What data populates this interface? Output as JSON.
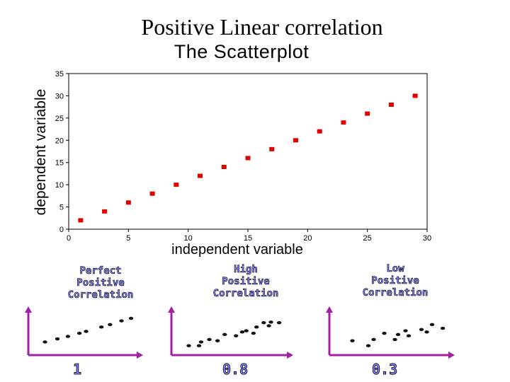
{
  "slide": {
    "title": "Positive Linear correlation"
  },
  "chart_data": [
    {
      "type": "scatter",
      "title": "The Scatterplot",
      "xlabel": "independent variable",
      "ylabel": "dependent variable",
      "xlim": [
        0,
        30
      ],
      "ylim": [
        0,
        35
      ],
      "xticks": [
        "0",
        "5",
        "10",
        "15",
        "20",
        "25",
        "30"
      ],
      "yticks": [
        "0",
        "5",
        "10",
        "15",
        "20",
        "25",
        "30",
        "35"
      ],
      "grid": false,
      "marker_color": "#e00000",
      "x": [
        1,
        3,
        5,
        7,
        9,
        11,
        13,
        15,
        17,
        19,
        21,
        23,
        25,
        27,
        29
      ],
      "y": [
        2,
        4,
        6,
        8,
        10,
        12,
        14,
        16,
        18,
        20,
        22,
        24,
        26,
        28,
        30
      ]
    },
    {
      "type": "scatter",
      "title_lines": [
        "Perfect",
        "Positive",
        "Correlation"
      ],
      "value_label": "1",
      "axis_color": "#a020a0",
      "x": [
        1.0,
        2.3,
        3.4,
        4.6,
        5.3,
        6.9,
        7.8,
        9.0,
        10.0
      ],
      "y": [
        1.2,
        1.7,
        2.1,
        2.6,
        2.9,
        3.6,
        4.0,
        4.6,
        5.0
      ]
    },
    {
      "type": "scatter",
      "title_lines": [
        "High",
        "Positive",
        "Correlation"
      ],
      "value_label": "0.8",
      "axis_color": "#a020a0",
      "x": [
        1.0,
        2.0,
        2.2,
        3.0,
        3.8,
        4.5,
        5.6,
        6.2,
        6.6,
        7.3,
        7.6,
        8.3,
        8.8,
        9.0,
        9.8
      ],
      "y": [
        0.6,
        0.6,
        1.2,
        1.6,
        1.4,
        2.4,
        2.2,
        2.8,
        3.0,
        2.6,
        3.6,
        4.3,
        3.8,
        4.4,
        4.3
      ]
    },
    {
      "type": "scatter",
      "title_lines": [
        "Low",
        "Positive",
        "Correlation"
      ],
      "value_label": "0.3",
      "axis_color": "#a020a0",
      "x": [
        1.5,
        3.0,
        3.5,
        4.5,
        5.5,
        5.8,
        6.5,
        6.8,
        8.0,
        8.5,
        9.0,
        10.0
      ],
      "y": [
        1.4,
        0.6,
        1.6,
        2.6,
        1.6,
        2.4,
        3.0,
        2.2,
        3.2,
        2.8,
        4.0,
        3.4
      ]
    }
  ]
}
